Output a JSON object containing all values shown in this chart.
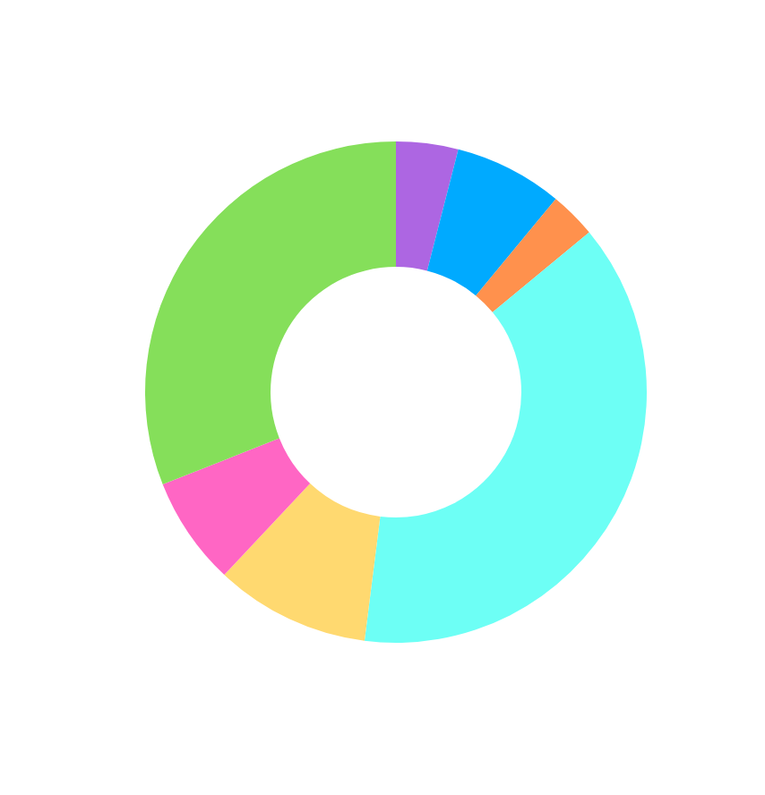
{
  "chart_data": {
    "type": "donut",
    "categories": [
      null,
      null,
      null,
      null,
      null,
      null,
      null
    ],
    "values": [
      4,
      7,
      3,
      38,
      10,
      7,
      31
    ],
    "colors": [
      "#ad66e2",
      "#00aaff",
      "#ff914d",
      "#6dfff5",
      "#ffd970",
      "#ff66c4",
      "#85df5a"
    ]
  }
}
